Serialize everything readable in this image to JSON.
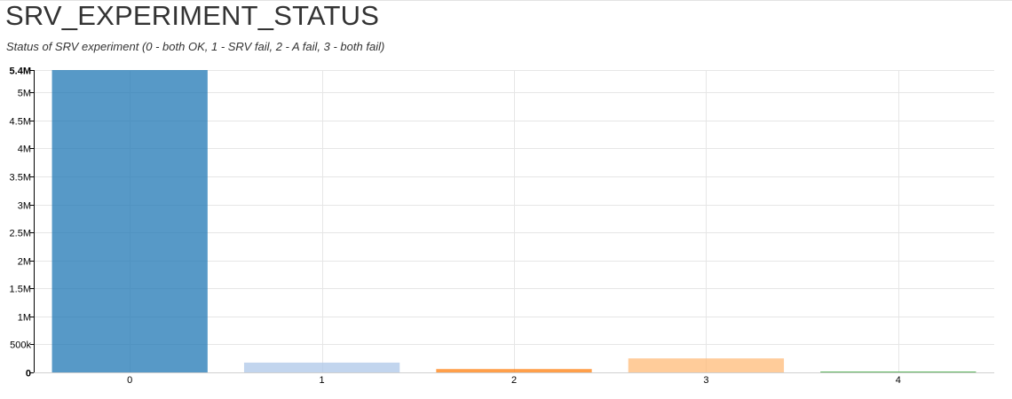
{
  "header": {
    "title": "SRV_EXPERIMENT_STATUS",
    "subtitle": "Status of SRV experiment (0 - both OK, 1 - SRV fail, 2 - A fail, 3 - both fail)"
  },
  "chart_data": {
    "type": "bar",
    "title": "SRV_EXPERIMENT_STATUS",
    "subtitle": "Status of SRV experiment (0 - both OK, 1 - SRV fail, 2 - A fail, 3 - both fail)",
    "categories": [
      "0",
      "1",
      "2",
      "3",
      "4"
    ],
    "values": [
      5400000,
      175000,
      60000,
      250000,
      10000
    ],
    "colors": [
      "#1f77b4",
      "#aec7e8",
      "#ff7f0e",
      "#ffbb78",
      "#2ca02c"
    ],
    "ylim": [
      0,
      5400000
    ],
    "yticks": [
      0,
      500000,
      1000000,
      1500000,
      2000000,
      2500000,
      3000000,
      3500000,
      4000000,
      4500000,
      5000000,
      5400000
    ],
    "ytick_labels": [
      "0",
      "500k",
      "1M",
      "1.5M",
      "2M",
      "2.5M",
      "3M",
      "3.5M",
      "4M",
      "4.5M",
      "5M",
      "5.4M"
    ],
    "xlabel": "",
    "ylabel": "",
    "grid": true,
    "legend": "none"
  }
}
